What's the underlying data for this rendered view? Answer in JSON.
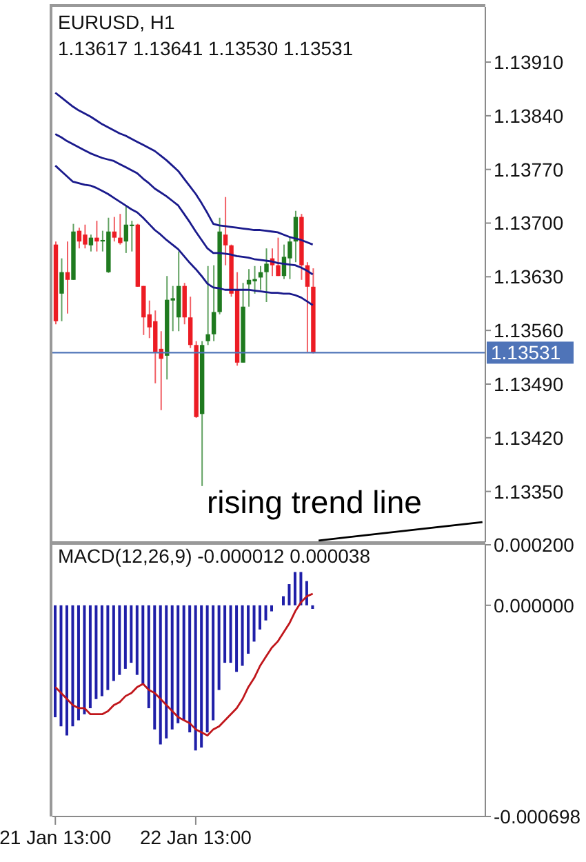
{
  "chart_data": [
    {
      "type": "candlestick",
      "title": "EURUSD, H1",
      "subtitle": "1.13617 1.13641 1.13530 1.13531",
      "legend": false,
      "grid": false,
      "marker": "none",
      "line_style": "solid",
      "tick_labels": "y",
      "categories": [
        null,
        null,
        null,
        null,
        null,
        null,
        null,
        null,
        null,
        null,
        null,
        null,
        null,
        null,
        null,
        null,
        null,
        null,
        null,
        null,
        null,
        null,
        null,
        null,
        null,
        null,
        null,
        null,
        null,
        null,
        null,
        null,
        null,
        null,
        null,
        null,
        null,
        null,
        null,
        null,
        null,
        null,
        null,
        null,
        null,
        null,
        null,
        null,
        null,
        null,
        null,
        null,
        null,
        null,
        null,
        null,
        null,
        null,
        null,
        null,
        null,
        null,
        null,
        null,
        null,
        null,
        null,
        null,
        null,
        null,
        null,
        null,
        null,
        null
      ],
      "ohlc": [
        [
          1.13672,
          1.13676,
          1.13568,
          1.13572
        ],
        [
          1.13608,
          1.13654,
          1.13572,
          1.13636
        ],
        [
          1.13636,
          1.13676,
          1.13582,
          1.13626
        ],
        [
          1.13626,
          1.13699,
          1.13626,
          1.13689
        ],
        [
          1.1369,
          1.13694,
          1.13667,
          1.13676
        ],
        [
          1.13685,
          1.13698,
          1.13667,
          1.13672
        ],
        [
          1.13671,
          1.13685,
          1.13663,
          1.13681
        ],
        [
          1.13681,
          1.13703,
          1.13663,
          1.13676
        ],
        [
          1.13676,
          1.1369,
          1.13663,
          1.13678
        ],
        [
          1.13636,
          1.13707,
          1.13635,
          1.13689
        ],
        [
          1.13689,
          1.13708,
          1.13676,
          1.13681
        ],
        [
          1.13681,
          1.13712,
          1.13672,
          1.13674
        ],
        [
          1.13676,
          1.13723,
          1.13661,
          1.13698
        ],
        [
          1.13696,
          1.13703,
          1.13663,
          1.13698
        ],
        [
          1.13698,
          1.13699,
          1.13617,
          1.13617
        ],
        [
          1.13618,
          1.13618,
          1.13554,
          1.13577
        ],
        [
          1.13581,
          1.13599,
          1.1355,
          1.13564
        ],
        [
          1.13572,
          1.13586,
          1.13491,
          1.13532
        ],
        [
          1.13536,
          1.13559,
          1.13456,
          1.13523
        ],
        [
          1.13527,
          1.13631,
          1.13496,
          1.136
        ],
        [
          1.13599,
          1.13618,
          1.13559,
          1.13602
        ],
        [
          1.13577,
          1.13663,
          1.13559,
          1.13618
        ],
        [
          1.13618,
          1.13622,
          1.13568,
          1.13577
        ],
        [
          1.13577,
          1.13604,
          1.13537,
          1.13541
        ],
        [
          1.13541,
          1.13546,
          1.13446,
          1.13447
        ],
        [
          1.13451,
          1.13546,
          1.13357,
          1.13541
        ],
        [
          1.13546,
          1.13644,
          1.13541,
          1.13555
        ],
        [
          1.13555,
          1.13645,
          1.13546,
          1.13584
        ],
        [
          1.13584,
          1.13707,
          1.13581,
          1.13689
        ],
        [
          1.13685,
          1.13734,
          1.13645,
          1.13671
        ],
        [
          1.13671,
          1.13672,
          1.13604,
          1.13608
        ],
        [
          1.13613,
          1.13636,
          1.13514,
          1.13518
        ],
        [
          1.13518,
          1.13622,
          1.13518,
          1.13591
        ],
        [
          1.1362,
          1.1364,
          1.13591,
          1.13626
        ],
        [
          1.13624,
          1.13644,
          1.13608,
          1.13627
        ],
        [
          1.13629,
          1.13644,
          1.13613,
          1.13636
        ],
        [
          1.13636,
          1.13667,
          1.13597,
          1.13647
        ],
        [
          1.13654,
          1.13667,
          1.13631,
          1.13645
        ],
        [
          1.13645,
          1.13681,
          1.13631,
          1.13631
        ],
        [
          1.13631,
          1.13672,
          1.13627,
          1.13656
        ],
        [
          1.13654,
          1.13681,
          1.13627,
          1.13676
        ],
        [
          1.13676,
          1.13716,
          1.13649,
          1.13708
        ],
        [
          1.13708,
          1.13712,
          1.13626,
          1.13645
        ],
        [
          1.13645,
          1.13649,
          1.13532,
          1.13617
        ],
        [
          1.13617,
          1.13641,
          1.1353,
          1.13531
        ],
        null,
        null,
        null,
        null,
        null,
        null,
        null,
        null,
        null,
        null,
        null,
        null,
        null,
        null,
        null,
        null,
        null,
        null,
        null,
        null,
        null,
        null,
        null,
        null,
        null,
        null,
        null,
        null,
        null
      ],
      "colors": [
        "#ec1c24",
        "#1f7a1f",
        "#ec1c24",
        "#1f7a1f",
        "#ec1c24",
        "#ec1c24",
        "#1f7a1f",
        "#ec1c24",
        "#1f7a1f",
        "#1f7a1f",
        "#ec1c24",
        "#ec1c24",
        "#1f7a1f",
        "#1f7a1f",
        "#ec1c24",
        "#ec1c24",
        "#ec1c24",
        "#ec1c24",
        "#ec1c24",
        "#1f7a1f",
        "#1f7a1f",
        "#1f7a1f",
        "#ec1c24",
        "#ec1c24",
        "#ec1c24",
        "#1f7a1f",
        "#1f7a1f",
        "#1f7a1f",
        "#1f7a1f",
        "#ec1c24",
        "#ec1c24",
        "#ec1c24",
        "#1f7a1f",
        "#1f7a1f",
        "#1f7a1f",
        "#1f7a1f",
        "#1f7a1f",
        "#ec1c24",
        "#ec1c24",
        "#1f7a1f",
        "#1f7a1f",
        "#1f7a1f",
        "#ec1c24",
        "#ec1c24",
        "#ec1c24",
        null,
        null,
        null,
        null,
        null,
        null,
        null,
        null,
        null,
        null,
        null,
        null,
        null,
        null,
        null,
        null,
        null,
        null,
        null,
        null,
        null,
        null,
        null,
        null,
        null,
        null,
        null,
        null,
        null
      ],
      "series": [
        {
          "type": "line",
          "color": "#1a1a8c",
          "values": [
            1.1387,
            1.13864,
            1.13858,
            1.13852,
            1.13847,
            1.13843,
            1.13839,
            1.13834,
            1.13829,
            1.13825,
            1.13821,
            1.13817,
            1.13814,
            1.1381,
            1.13806,
            1.13802,
            1.13798,
            1.13794,
            1.13788,
            1.13782,
            1.13775,
            1.13768,
            1.13758,
            1.13748,
            1.13738,
            1.13726,
            1.13713,
            1.13699,
            1.13697,
            1.13696,
            1.13695,
            1.13694,
            1.13693,
            1.13692,
            1.13691,
            1.13691,
            1.1369,
            1.13689,
            1.13688,
            1.13685,
            1.13682,
            1.1368,
            1.13678,
            1.13675,
            1.13672,
            null,
            null,
            null,
            null,
            null,
            null,
            null,
            null,
            null,
            null,
            null,
            null,
            null,
            null,
            null,
            null,
            null,
            null,
            null,
            null,
            null,
            null,
            null,
            null,
            null,
            null,
            null,
            null,
            null
          ]
        },
        {
          "type": "line",
          "color": "#1a1a8c",
          "values": [
            1.13816,
            1.13812,
            1.13807,
            1.13803,
            1.13799,
            1.13795,
            1.13791,
            1.13788,
            1.13785,
            1.13783,
            1.13781,
            1.13777,
            1.13773,
            1.13769,
            1.13765,
            1.13758,
            1.13752,
            1.13745,
            1.1374,
            1.13735,
            1.13729,
            1.13723,
            1.13712,
            1.13701,
            1.13689,
            1.13678,
            1.13667,
            1.13661,
            1.13661,
            1.1366,
            1.13659,
            1.13657,
            1.13656,
            1.13655,
            1.13653,
            1.13652,
            1.13651,
            1.1365,
            1.13648,
            1.13647,
            1.13646,
            1.13645,
            1.13642,
            1.13638,
            1.13633,
            null,
            null,
            null,
            null,
            null,
            null,
            null,
            null,
            null,
            null,
            null,
            null,
            null,
            null,
            null,
            null,
            null,
            null,
            null,
            null,
            null,
            null,
            null,
            null,
            null,
            null,
            null,
            null,
            null
          ]
        },
        {
          "type": "line",
          "color": "#1a1a8c",
          "values": [
            1.13775,
            1.13768,
            1.13761,
            1.13754,
            1.13752,
            1.1375,
            1.13749,
            1.13746,
            1.13742,
            1.13738,
            1.13733,
            1.13728,
            1.13723,
            1.13718,
            1.13714,
            1.13707,
            1.13699,
            1.13691,
            1.13685,
            1.13678,
            1.13672,
            1.13666,
            1.13657,
            1.13648,
            1.1364,
            1.13631,
            1.13621,
            1.13616,
            1.13615,
            1.13613,
            1.13613,
            1.13613,
            1.13613,
            1.13613,
            1.13612,
            1.13611,
            1.1361,
            1.13609,
            1.13609,
            1.13608,
            1.13608,
            1.13606,
            1.13603,
            1.13598,
            1.13593,
            null,
            null,
            null,
            null,
            null,
            null,
            null,
            null,
            null,
            null,
            null,
            null,
            null,
            null,
            null,
            null,
            null,
            null,
            null,
            null,
            null,
            null,
            null,
            null,
            null,
            null,
            null,
            null,
            null
          ]
        },
        {
          "type": "line",
          "color": "#000000",
          "values": [
            null,
            null,
            null,
            null,
            null,
            null,
            null,
            null,
            null,
            null,
            null,
            null,
            null,
            null,
            null,
            null,
            null,
            null,
            null,
            null,
            null,
            null,
            null,
            null,
            null,
            null,
            null,
            null,
            null,
            null,
            null,
            null,
            null,
            null,
            null,
            null,
            null,
            null,
            null,
            null,
            null,
            null,
            null,
            null,
            null,
            1.13286,
            null,
            null,
            null,
            null,
            null,
            null,
            null,
            null,
            null,
            null,
            null,
            null,
            null,
            null,
            null,
            null,
            null,
            null,
            null,
            null,
            null,
            null,
            null,
            null,
            null,
            null,
            null,
            1.1331
          ]
        }
      ],
      "ylim": [
        1.13284,
        1.13982
      ],
      "yticks": [
        {
          "value": 1.1391,
          "label": "1.13910"
        },
        {
          "value": 1.1384,
          "label": "1.13840"
        },
        {
          "value": 1.1377,
          "label": "1.13770"
        },
        {
          "value": 1.137,
          "label": "1.13700"
        },
        {
          "value": 1.1363,
          "label": "1.13630"
        },
        {
          "value": 1.1356,
          "label": "1.13560"
        },
        {
          "value": 1.1349,
          "label": "1.13490"
        },
        {
          "value": 1.1342,
          "label": "1.13420"
        },
        {
          "value": 1.1335,
          "label": "1.13350"
        }
      ],
      "ref_lines": [
        {
          "axis": "y",
          "value": 1.13531,
          "label": "1.13531",
          "color": "#4f74b8"
        }
      ],
      "annotations": [
        "rising trend line"
      ]
    },
    {
      "type": "bar",
      "title": "MACD(12,26,9) -0.000012 0.000038",
      "legend": false,
      "grid": false,
      "marker": "none",
      "line_style": "solid",
      "categories": [
        "21 Jan 13:00",
        null,
        null,
        null,
        null,
        null,
        null,
        null,
        null,
        null,
        null,
        null,
        null,
        null,
        null,
        null,
        null,
        null,
        null,
        null,
        null,
        null,
        null,
        null,
        "22 Jan 13:00",
        null,
        null,
        null,
        null,
        null,
        null,
        null,
        null,
        null,
        null,
        null,
        null,
        null,
        null,
        null,
        null,
        null,
        null,
        null,
        null,
        null,
        null,
        null,
        null,
        null,
        null,
        null,
        null,
        null,
        null,
        null,
        null,
        null,
        null,
        null,
        null,
        null,
        null,
        null,
        null,
        null,
        null,
        null,
        null,
        null,
        null,
        null,
        null,
        null
      ],
      "series": [
        {
          "type": "bar",
          "color": "#1f1fa8",
          "values": [
            -0.00037,
            -0.0004,
            -0.00043,
            -0.0004,
            -0.00038,
            -0.00036,
            -0.00034,
            -0.00031,
            -0.0003,
            -0.00028,
            -0.00025,
            -0.00023,
            -0.00021,
            -0.00019,
            -0.00023,
            -0.00026,
            -0.00034,
            -0.00041,
            -0.00046,
            -0.00044,
            -0.00041,
            -0.00039,
            -0.00038,
            -0.00042,
            -0.00048,
            -0.00047,
            -0.00042,
            -0.00038,
            -0.00028,
            -0.00019,
            -0.00019,
            -0.00022,
            -0.0002,
            -0.00016,
            -0.00012,
            -8e-05,
            -5e-05,
            -2e-05,
            0,
            3e-05,
            7e-05,
            0.00011,
            0.00011,
            8e-05,
            -1.2e-05,
            null,
            null,
            null,
            null,
            null,
            null,
            null,
            null,
            null,
            null,
            null,
            null,
            null,
            null,
            null,
            null,
            null,
            null,
            null,
            null,
            null,
            null,
            null,
            null,
            null,
            null,
            null,
            null,
            null
          ]
        },
        {
          "type": "line",
          "color": "#c0161b",
          "values": [
            -0.00027,
            -0.00029,
            -0.00031,
            -0.00033,
            -0.00034,
            -0.00034,
            -0.00036,
            -0.00036,
            -0.00036,
            -0.00035,
            -0.00033,
            -0.00032,
            -0.0003,
            -0.00029,
            -0.00027,
            -0.00026,
            -0.00028,
            -0.00029,
            -0.00031,
            -0.00033,
            -0.00035,
            -0.00037,
            -0.00038,
            -0.00039,
            -0.00041,
            -0.00042,
            -0.00043,
            -0.00041,
            -0.0004,
            -0.00038,
            -0.00036,
            -0.00034,
            -0.00031,
            -0.00027,
            -0.00024,
            -0.0002,
            -0.00017,
            -0.00014,
            -0.00012,
            -9e-05,
            -6e-05,
            -2e-05,
            1e-05,
            3e-05,
            3.8e-05,
            null,
            null,
            null,
            null,
            null,
            null,
            null,
            null,
            null,
            null,
            null,
            null,
            null,
            null,
            null,
            null,
            null,
            null,
            null,
            null,
            null,
            null,
            null,
            null,
            null,
            null,
            null,
            null,
            null
          ]
        }
      ],
      "ylim": [
        -0.000698,
        0.0002
      ],
      "yticks": [
        {
          "value": 0.0002,
          "label": "0.000200"
        },
        {
          "value": 0,
          "label": "0.000000"
        },
        {
          "value": -0.000698,
          "label": "-0.000698"
        }
      ]
    }
  ]
}
